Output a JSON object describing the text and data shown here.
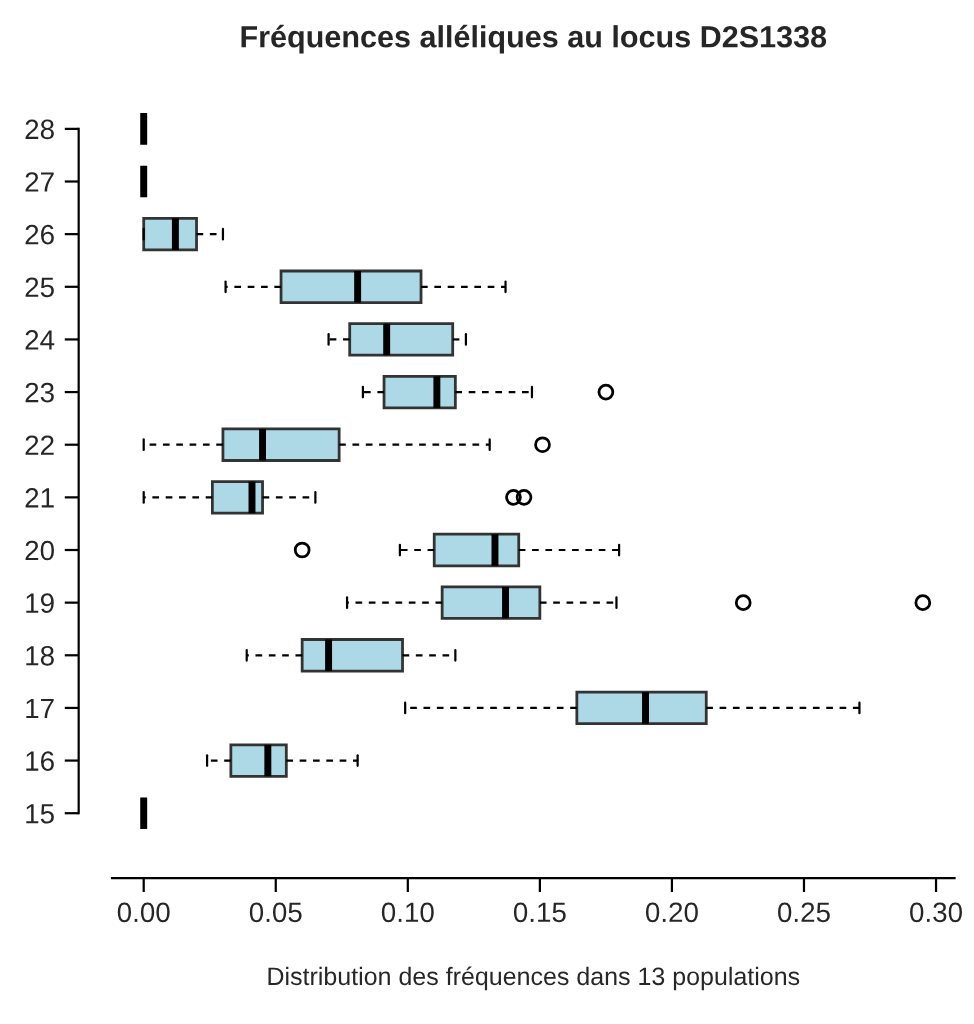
{
  "chart_data": {
    "type": "box",
    "title": "Fréquences alléliques au locus D2S1338",
    "xlabel": "Distribution des fréquences dans 13 populations",
    "orientation": "horizontal",
    "categories": [
      "28",
      "27",
      "26",
      "25",
      "24",
      "23",
      "22",
      "21",
      "20",
      "19",
      "18",
      "17",
      "16",
      "15"
    ],
    "color": "#add8e6",
    "boxes": [
      {
        "low": 0,
        "q1": 0,
        "median": 0,
        "q3": 0,
        "high": 0
      },
      {
        "low": 0,
        "q1": 0,
        "median": 0,
        "q3": 0,
        "high": 0
      },
      {
        "low": 0,
        "q1": 0,
        "median": 0.012,
        "q3": 0.02,
        "high": 0.03
      },
      {
        "low": 0.031,
        "q1": 0.052,
        "median": 0.081,
        "q3": 0.105,
        "high": 0.137
      },
      {
        "low": 0.07,
        "q1": 0.078,
        "median": 0.092,
        "q3": 0.117,
        "high": 0.122
      },
      {
        "low": 0.083,
        "q1": 0.091,
        "median": 0.111,
        "q3": 0.118,
        "high": 0.147,
        "outliers": [
          0.175
        ]
      },
      {
        "low": 0,
        "q1": 0.03,
        "median": 0.045,
        "q3": 0.074,
        "high": 0.131,
        "outliers": [
          0.151
        ]
      },
      {
        "low": 0,
        "q1": 0.026,
        "median": 0.041,
        "q3": 0.045,
        "high": 0.065,
        "outliers": [
          0.14,
          0.144
        ]
      },
      {
        "low": 0.097,
        "q1": 0.11,
        "median": 0.133,
        "q3": 0.142,
        "high": 0.18,
        "outliers": [
          0.06
        ]
      },
      {
        "low": 0.077,
        "q1": 0.113,
        "median": 0.137,
        "q3": 0.15,
        "high": 0.179,
        "outliers": [
          0.227,
          0.295
        ]
      },
      {
        "low": 0.039,
        "q1": 0.06,
        "median": 0.07,
        "q3": 0.098,
        "high": 0.118
      },
      {
        "low": 0.099,
        "q1": 0.164,
        "median": 0.19,
        "q3": 0.213,
        "high": 0.271
      },
      {
        "low": 0.024,
        "q1": 0.033,
        "median": 0.047,
        "q3": 0.054,
        "high": 0.081
      },
      {
        "low": 0,
        "q1": 0,
        "median": 0,
        "q3": 0,
        "high": 0
      }
    ],
    "xlim": [
      -0.012,
      0.307
    ],
    "xticks": [
      {
        "value": 0,
        "label": "0.00"
      },
      {
        "value": 0.05,
        "label": "0.05"
      },
      {
        "value": 0.1,
        "label": "0.10"
      },
      {
        "value": 0.15,
        "label": "0.15"
      },
      {
        "value": 0.2,
        "label": "0.20"
      },
      {
        "value": 0.25,
        "label": "0.25"
      },
      {
        "value": 0.3,
        "label": "0.30"
      }
    ],
    "grid": false
  }
}
